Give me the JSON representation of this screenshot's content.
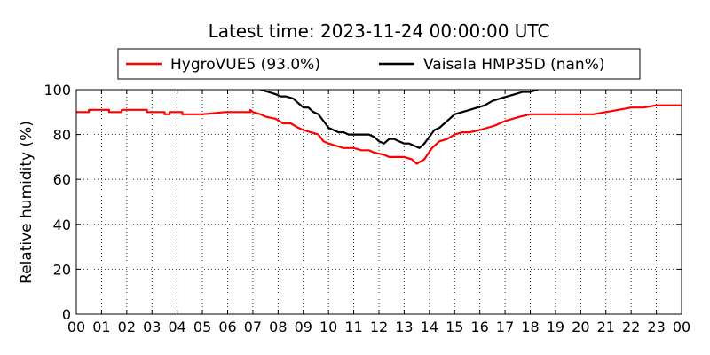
{
  "chart_data": {
    "type": "line",
    "title": "Latest time: 2023-11-24 00:00:00 UTC",
    "xlabel": "",
    "ylabel": "Relative humidity (%)",
    "xlim": [
      0,
      24
    ],
    "ylim": [
      0,
      100
    ],
    "x_ticks": [
      "00",
      "01",
      "02",
      "03",
      "04",
      "05",
      "06",
      "07",
      "08",
      "09",
      "10",
      "11",
      "12",
      "13",
      "14",
      "15",
      "16",
      "17",
      "18",
      "19",
      "20",
      "21",
      "22",
      "23",
      "00"
    ],
    "y_ticks": [
      0,
      20,
      40,
      60,
      80,
      100
    ],
    "grid": true,
    "legend": {
      "position": "top-center",
      "columns": 2
    },
    "series": [
      {
        "name": "HygroVUE5 (93.0%)",
        "color": "#ff0000",
        "x": [
          0,
          0.5,
          0.5,
          1.3,
          1.3,
          1.8,
          1.8,
          2.8,
          2.8,
          3.5,
          3.5,
          3.7,
          3.7,
          4.2,
          4.2,
          4.7,
          4.7,
          5.0,
          5.0,
          5.9,
          5.9,
          6.9,
          6.9,
          7.0,
          7.3,
          7.5,
          7.9,
          8.2,
          8.5,
          8.8,
          9.0,
          9.3,
          9.6,
          9.8,
          10.0,
          10.3,
          10.6,
          11.0,
          11.3,
          11.6,
          11.8,
          12.2,
          12.4,
          12.7,
          13.0,
          13.3,
          13.5,
          13.8,
          14.1,
          14.4,
          14.7,
          15.0,
          15.3,
          15.6,
          16.0,
          16.3,
          16.6,
          17.0,
          17.3,
          17.6,
          18.0,
          18.5,
          19.0,
          19.5,
          20.0,
          20.5,
          21.0,
          21.5,
          22.0,
          22.5,
          23.0,
          24.0
        ],
        "values": [
          90,
          90,
          91,
          91,
          90,
          90,
          91,
          91,
          90,
          90,
          89,
          89,
          90,
          90,
          89,
          89,
          89,
          89,
          89,
          90,
          90,
          90,
          91,
          90,
          89,
          88,
          87,
          85,
          85,
          83,
          82,
          81,
          80,
          77,
          76,
          75,
          74,
          74,
          73,
          73,
          72,
          71,
          70,
          70,
          70,
          69,
          67,
          69,
          74,
          77,
          78,
          80,
          81,
          81,
          82,
          83,
          84,
          86,
          87,
          88,
          89,
          89,
          89,
          89,
          89,
          89,
          90,
          91,
          92,
          92,
          93,
          93
        ]
      },
      {
        "name": "Vaisala HMP35D (nan%)",
        "color": "#000000",
        "x": [
          7.3,
          7.6,
          7.9,
          8.1,
          8.3,
          8.6,
          8.8,
          9.0,
          9.2,
          9.4,
          9.6,
          9.8,
          10.0,
          10.2,
          10.4,
          10.6,
          10.8,
          11.0,
          11.2,
          11.4,
          11.6,
          11.8,
          12.0,
          12.2,
          12.4,
          12.6,
          12.8,
          13.0,
          13.2,
          13.4,
          13.6,
          13.8,
          14.0,
          14.2,
          14.4,
          14.6,
          14.8,
          15.0,
          15.3,
          15.6,
          15.9,
          16.2,
          16.5,
          16.8,
          17.1,
          17.4,
          17.7,
          18.0,
          18.3
        ],
        "values": [
          100,
          99,
          98,
          97,
          97,
          96,
          94,
          92,
          92,
          90,
          89,
          86,
          83,
          82,
          81,
          81,
          80,
          80,
          80,
          80,
          80,
          79,
          77,
          76,
          78,
          78,
          77,
          76,
          76,
          75,
          74,
          76,
          79,
          82,
          83,
          85,
          87,
          89,
          90,
          91,
          92,
          93,
          95,
          96,
          97,
          98,
          99,
          99,
          100
        ]
      }
    ]
  }
}
